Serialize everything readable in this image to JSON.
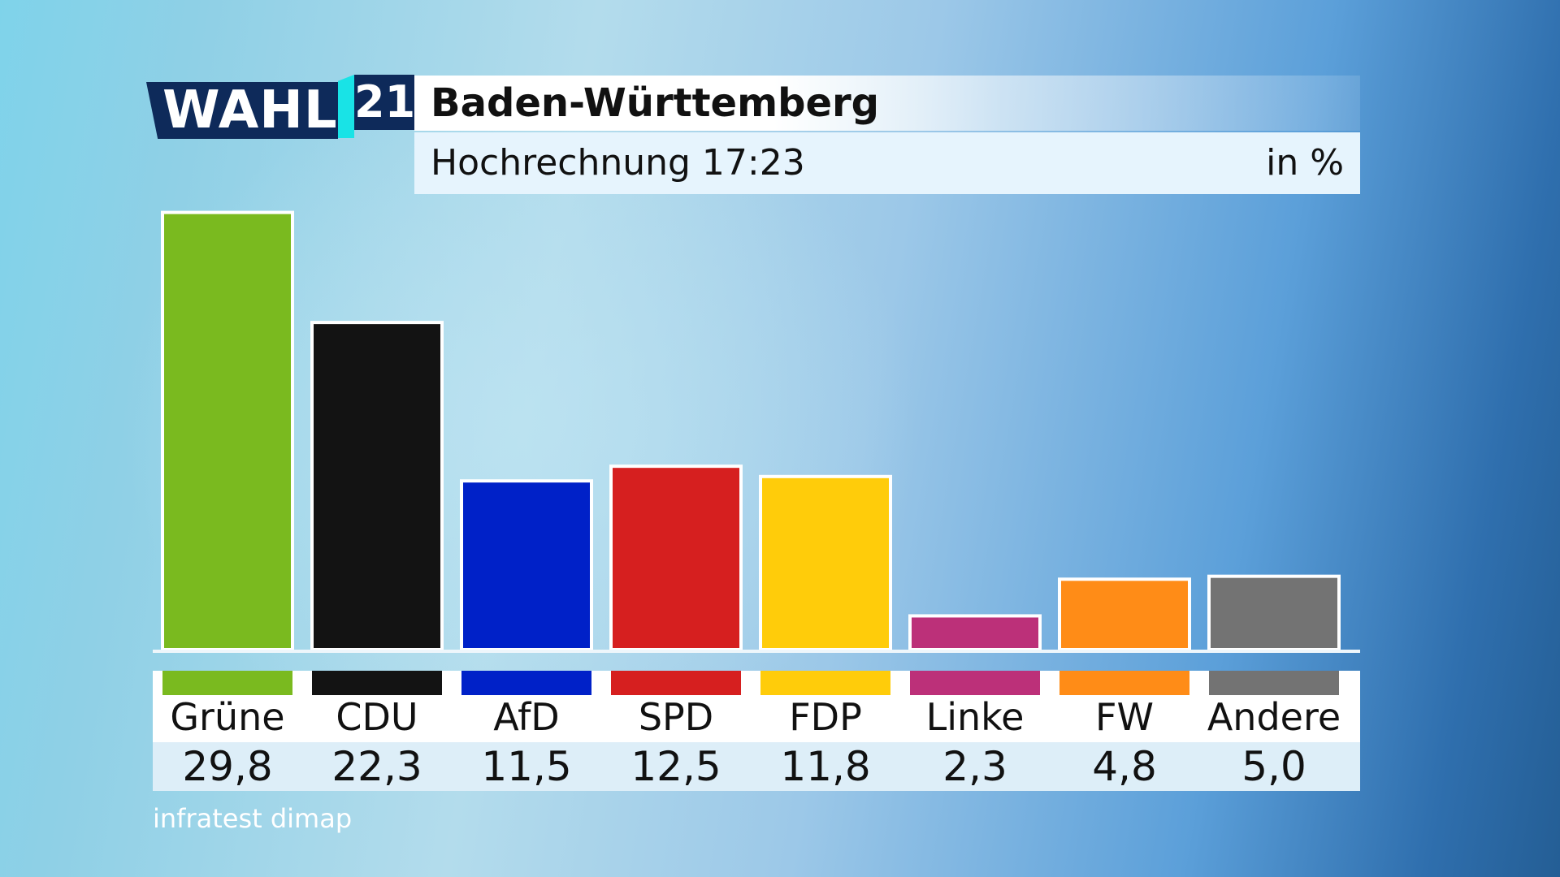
{
  "logo": {
    "text": "WAHL",
    "year": "21"
  },
  "header": {
    "title": "Baden-Württemberg",
    "subtitle": "Hochrechnung 17:23",
    "unit": "in %"
  },
  "source": "infratest dimap",
  "chart_data": {
    "type": "bar",
    "title": "Baden-Württemberg",
    "subtitle": "Hochrechnung 17:23",
    "unit": "in %",
    "ylim": [
      0,
      30
    ],
    "grid": false,
    "categories": [
      "Grüne",
      "CDU",
      "AfD",
      "SPD",
      "FDP",
      "Linke",
      "FW",
      "Andere"
    ],
    "values": [
      29.8,
      22.3,
      11.5,
      12.5,
      11.8,
      2.3,
      4.8,
      5.0
    ],
    "value_labels": [
      "29,8",
      "22,3",
      "11,5",
      "12,5",
      "11,8",
      "2,3",
      "4,8",
      "5,0"
    ],
    "colors": [
      "#7aba1f",
      "#131313",
      "#0021c8",
      "#d61f1f",
      "#ffcc0a",
      "#bc3079",
      "#ff8c17",
      "#737373"
    ]
  }
}
